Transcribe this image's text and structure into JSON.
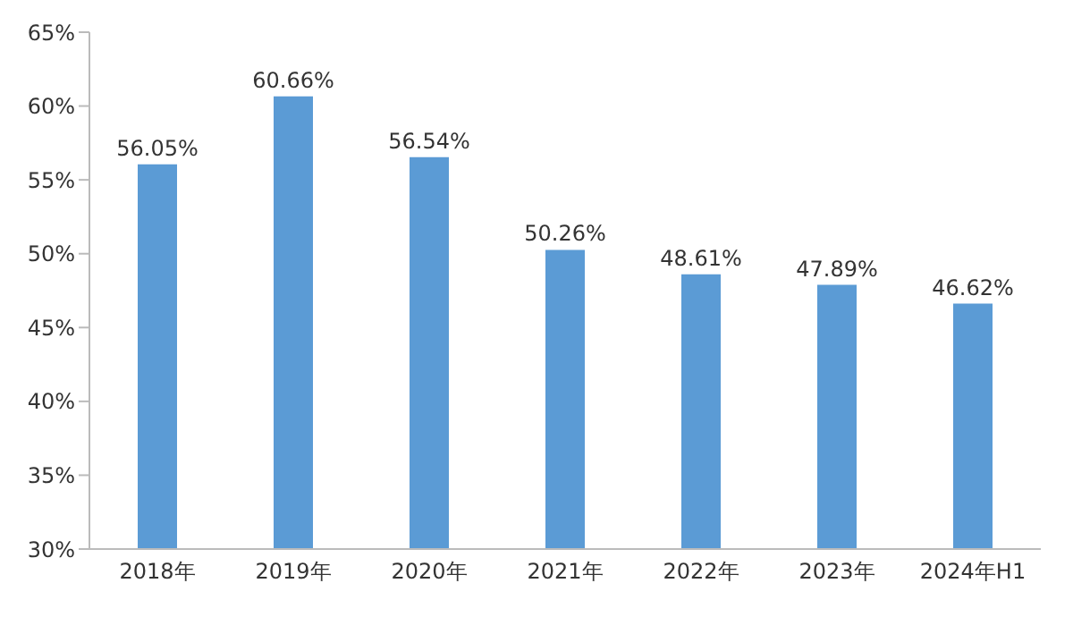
{
  "chart_data": {
    "type": "bar",
    "categories": [
      "2018年",
      "2019年",
      "2020年",
      "2021年",
      "2022年",
      "2023年",
      "2024年H1"
    ],
    "values": [
      56.05,
      60.66,
      56.54,
      50.26,
      48.61,
      47.89,
      46.62
    ],
    "value_labels": [
      "56.05%",
      "60.66%",
      "56.54%",
      "50.26%",
      "48.61%",
      "47.89%",
      "46.62%"
    ],
    "color": "#5b9bd5",
    "ylim": [
      30,
      65
    ],
    "yticks": [
      {
        "value": 30,
        "label": "30%"
      },
      {
        "value": 35,
        "label": "35%"
      },
      {
        "value": 40,
        "label": "40%"
      },
      {
        "value": 45,
        "label": "45%"
      },
      {
        "value": 50,
        "label": "50%"
      },
      {
        "value": 55,
        "label": "55%"
      },
      {
        "value": 60,
        "label": "60%"
      },
      {
        "value": 65,
        "label": "65%"
      }
    ],
    "grid": false,
    "legend": false
  }
}
